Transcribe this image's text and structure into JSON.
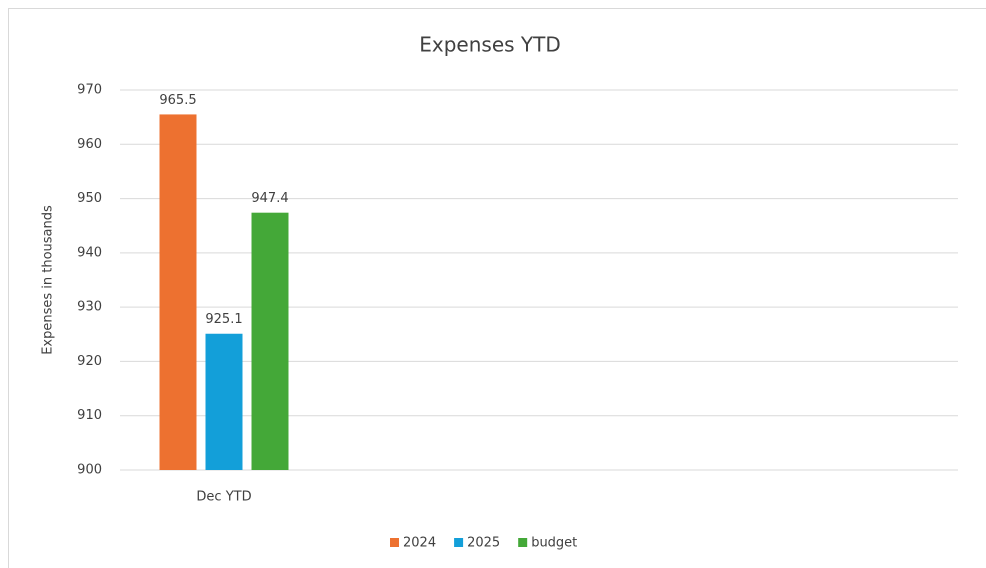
{
  "chart_data": {
    "type": "bar",
    "title": "Expenses YTD",
    "y_label": "Expenses in thousands",
    "categories": [
      "Dec  YTD"
    ],
    "series": [
      {
        "name": "2024",
        "color": "#ed7130",
        "values": [
          965.5
        ]
      },
      {
        "name": "2025",
        "color": "#139fd9",
        "values": [
          925.1
        ]
      },
      {
        "name": "budget",
        "color": "#44a838",
        "values": [
          947.4
        ]
      }
    ],
    "ylim": [
      900,
      970
    ],
    "yticks": [
      900,
      910,
      920,
      930,
      940,
      950,
      960,
      970
    ],
    "grid": true,
    "legend": "bottom"
  }
}
